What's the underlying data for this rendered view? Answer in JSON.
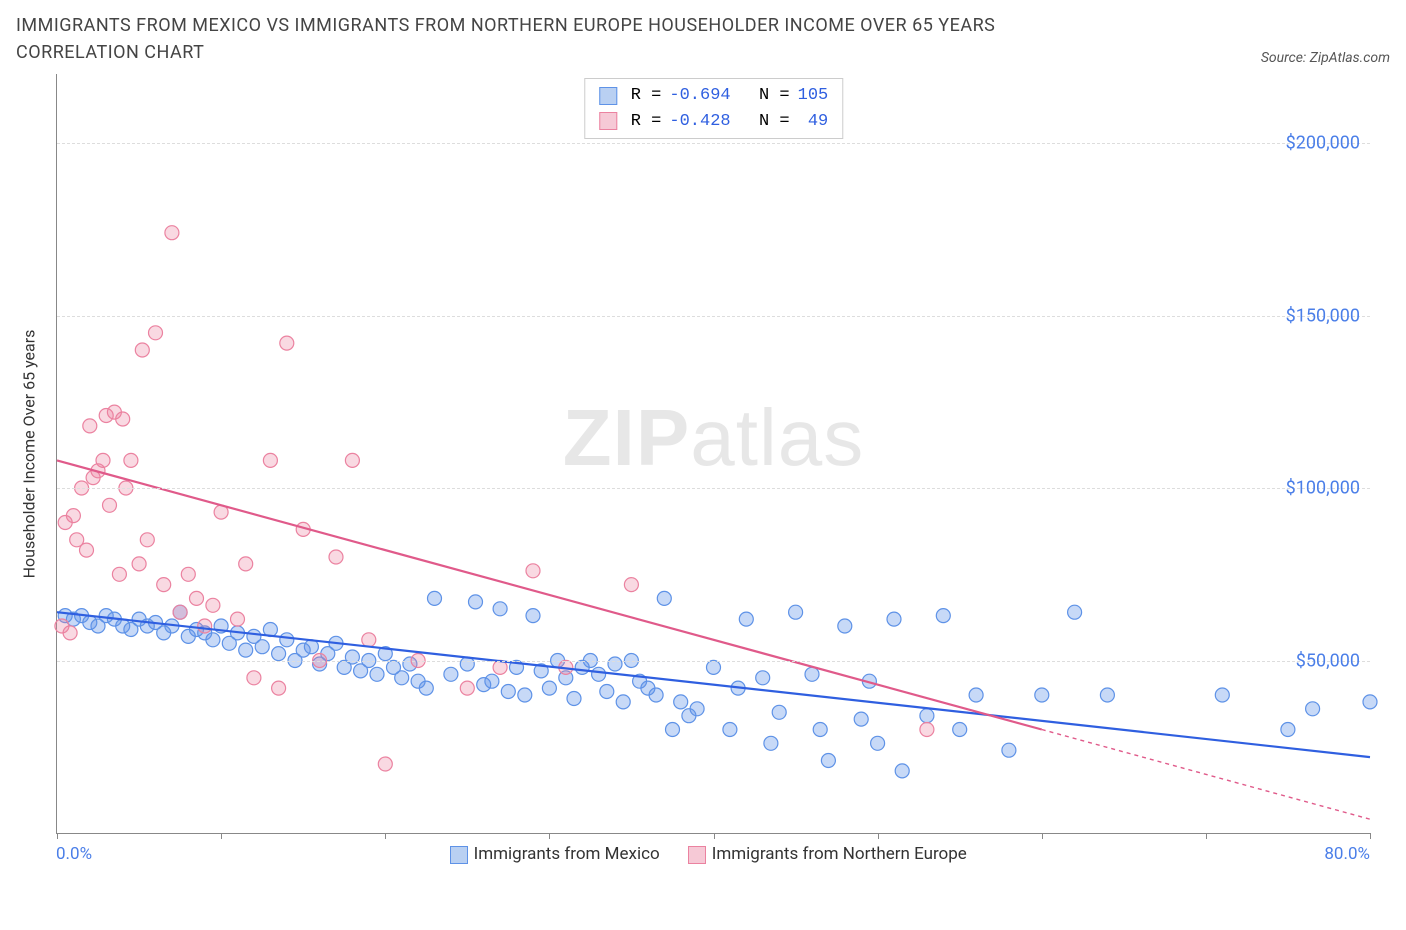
{
  "title": "IMMIGRANTS FROM MEXICO VS IMMIGRANTS FROM NORTHERN EUROPE HOUSEHOLDER INCOME OVER 65 YEARS CORRELATION CHART",
  "source_label": "Source: ZipAtlas.com",
  "watermark_a": "ZIP",
  "watermark_b": "atlas",
  "y_axis_label": "Householder Income Over 65 years",
  "chart": {
    "type": "scatter",
    "background_color": "#ffffff",
    "grid_color": "#dddddd",
    "axis_color": "#888888",
    "xlim": [
      0,
      80
    ],
    "ylim": [
      0,
      220000
    ],
    "y_ticks": [
      50000,
      100000,
      150000,
      200000
    ],
    "y_tick_labels": [
      "$50,000",
      "$100,000",
      "$150,000",
      "$200,000"
    ],
    "x_ticks": [
      0,
      10,
      20,
      30,
      40,
      50,
      60,
      70,
      80
    ],
    "x_label_min": "0.0%",
    "x_label_max": "80.0%",
    "series": [
      {
        "name": "Immigrants from Mexico",
        "color_fill": "rgba(94,146,231,0.35)",
        "color_stroke": "#5e92e7",
        "swatch_fill": "#b9d0f2",
        "swatch_border": "#5e92e7",
        "line_color": "#2f5fe0",
        "R": "-0.694",
        "N": "105",
        "marker_r": 7,
        "trend": {
          "x1": 0,
          "y1": 64000,
          "x2": 80,
          "y2": 22000,
          "dash_after_x": 80
        },
        "points": [
          [
            0.5,
            63000
          ],
          [
            1,
            62000
          ],
          [
            1.5,
            63000
          ],
          [
            2,
            61000
          ],
          [
            2.5,
            60000
          ],
          [
            3,
            63000
          ],
          [
            3.5,
            62000
          ],
          [
            4,
            60000
          ],
          [
            4.5,
            59000
          ],
          [
            5,
            62000
          ],
          [
            5.5,
            60000
          ],
          [
            6,
            61000
          ],
          [
            6.5,
            58000
          ],
          [
            7,
            60000
          ],
          [
            7.5,
            64000
          ],
          [
            8,
            57000
          ],
          [
            8.5,
            59000
          ],
          [
            9,
            58000
          ],
          [
            9.5,
            56000
          ],
          [
            10,
            60000
          ],
          [
            10.5,
            55000
          ],
          [
            11,
            58000
          ],
          [
            11.5,
            53000
          ],
          [
            12,
            57000
          ],
          [
            12.5,
            54000
          ],
          [
            13,
            59000
          ],
          [
            13.5,
            52000
          ],
          [
            14,
            56000
          ],
          [
            14.5,
            50000
          ],
          [
            15,
            53000
          ],
          [
            15.5,
            54000
          ],
          [
            16,
            49000
          ],
          [
            16.5,
            52000
          ],
          [
            17,
            55000
          ],
          [
            17.5,
            48000
          ],
          [
            18,
            51000
          ],
          [
            18.5,
            47000
          ],
          [
            19,
            50000
          ],
          [
            19.5,
            46000
          ],
          [
            20,
            52000
          ],
          [
            20.5,
            48000
          ],
          [
            21,
            45000
          ],
          [
            21.5,
            49000
          ],
          [
            22,
            44000
          ],
          [
            22.5,
            42000
          ],
          [
            23,
            68000
          ],
          [
            24,
            46000
          ],
          [
            25,
            49000
          ],
          [
            25.5,
            67000
          ],
          [
            26,
            43000
          ],
          [
            26.5,
            44000
          ],
          [
            27,
            65000
          ],
          [
            27.5,
            41000
          ],
          [
            28,
            48000
          ],
          [
            28.5,
            40000
          ],
          [
            29,
            63000
          ],
          [
            29.5,
            47000
          ],
          [
            30,
            42000
          ],
          [
            30.5,
            50000
          ],
          [
            31,
            45000
          ],
          [
            31.5,
            39000
          ],
          [
            32,
            48000
          ],
          [
            32.5,
            50000
          ],
          [
            33,
            46000
          ],
          [
            33.5,
            41000
          ],
          [
            34,
            49000
          ],
          [
            34.5,
            38000
          ],
          [
            35,
            50000
          ],
          [
            35.5,
            44000
          ],
          [
            36,
            42000
          ],
          [
            36.5,
            40000
          ],
          [
            37,
            68000
          ],
          [
            37.5,
            30000
          ],
          [
            38,
            38000
          ],
          [
            38.5,
            34000
          ],
          [
            39,
            36000
          ],
          [
            40,
            48000
          ],
          [
            41,
            30000
          ],
          [
            41.5,
            42000
          ],
          [
            42,
            62000
          ],
          [
            43,
            45000
          ],
          [
            43.5,
            26000
          ],
          [
            44,
            35000
          ],
          [
            45,
            64000
          ],
          [
            46,
            46000
          ],
          [
            46.5,
            30000
          ],
          [
            47,
            21000
          ],
          [
            48,
            60000
          ],
          [
            49,
            33000
          ],
          [
            49.5,
            44000
          ],
          [
            50,
            26000
          ],
          [
            51,
            62000
          ],
          [
            51.5,
            18000
          ],
          [
            53,
            34000
          ],
          [
            54,
            63000
          ],
          [
            55,
            30000
          ],
          [
            56,
            40000
          ],
          [
            58,
            24000
          ],
          [
            60,
            40000
          ],
          [
            62,
            64000
          ],
          [
            64,
            40000
          ],
          [
            71,
            40000
          ],
          [
            75,
            30000
          ],
          [
            76.5,
            36000
          ],
          [
            80,
            38000
          ]
        ]
      },
      {
        "name": "Immigrants from Northern Europe",
        "color_fill": "rgba(235,130,160,0.30)",
        "color_stroke": "#eb82a0",
        "swatch_fill": "#f6c9d6",
        "swatch_border": "#eb82a0",
        "line_color": "#e05a8a",
        "R": "-0.428",
        "N": "49",
        "marker_r": 7,
        "trend": {
          "x1": 0,
          "y1": 108000,
          "x2": 60,
          "y2": 30000,
          "dash_after_x": 60
        },
        "points": [
          [
            0.3,
            60000
          ],
          [
            0.5,
            90000
          ],
          [
            0.8,
            58000
          ],
          [
            1,
            92000
          ],
          [
            1.2,
            85000
          ],
          [
            1.5,
            100000
          ],
          [
            1.8,
            82000
          ],
          [
            2,
            118000
          ],
          [
            2.2,
            103000
          ],
          [
            2.5,
            105000
          ],
          [
            2.8,
            108000
          ],
          [
            3,
            121000
          ],
          [
            3.2,
            95000
          ],
          [
            3.5,
            122000
          ],
          [
            3.8,
            75000
          ],
          [
            4,
            120000
          ],
          [
            4.2,
            100000
          ],
          [
            4.5,
            108000
          ],
          [
            5,
            78000
          ],
          [
            5.2,
            140000
          ],
          [
            5.5,
            85000
          ],
          [
            6,
            145000
          ],
          [
            6.5,
            72000
          ],
          [
            7,
            174000
          ],
          [
            7.5,
            64000
          ],
          [
            8,
            75000
          ],
          [
            8.5,
            68000
          ],
          [
            9,
            60000
          ],
          [
            9.5,
            66000
          ],
          [
            10,
            93000
          ],
          [
            11,
            62000
          ],
          [
            11.5,
            78000
          ],
          [
            12,
            45000
          ],
          [
            13,
            108000
          ],
          [
            13.5,
            42000
          ],
          [
            14,
            142000
          ],
          [
            15,
            88000
          ],
          [
            16,
            50000
          ],
          [
            17,
            80000
          ],
          [
            18,
            108000
          ],
          [
            19,
            56000
          ],
          [
            20,
            20000
          ],
          [
            22,
            50000
          ],
          [
            25,
            42000
          ],
          [
            27,
            48000
          ],
          [
            29,
            76000
          ],
          [
            31,
            48000
          ],
          [
            35,
            72000
          ],
          [
            53,
            30000
          ]
        ]
      }
    ]
  },
  "bottom_legend": {
    "items": [
      {
        "label": "Immigrants from Mexico",
        "fill": "#b9d0f2",
        "border": "#5e92e7"
      },
      {
        "label": "Immigrants from Northern Europe",
        "fill": "#f6c9d6",
        "border": "#eb82a0"
      }
    ]
  }
}
